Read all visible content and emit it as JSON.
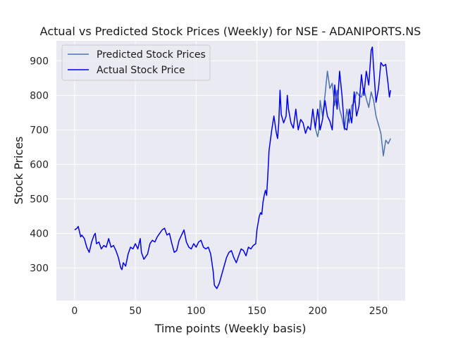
{
  "chart_data": {
    "type": "line",
    "title": "Actual vs Predicted Stock Prices (Weekly) for NSE - ADANIPORTS.NS",
    "xlabel": "Time points (Weekly basis)",
    "ylabel": "Stock Prices",
    "xlim": [
      -15,
      272
    ],
    "ylim": [
      205,
      958
    ],
    "xticks": [
      0,
      50,
      100,
      150,
      200,
      250
    ],
    "yticks": [
      300,
      400,
      500,
      600,
      700,
      800,
      900
    ],
    "grid": true,
    "legend_position": "top-left",
    "series": [
      {
        "name": "Predicted Stock Prices",
        "color": "#4c72b0",
        "x": [
          198,
          200,
          201,
          202,
          204,
          206,
          208,
          210,
          212,
          214,
          216,
          218,
          220,
          222,
          224,
          226,
          228,
          230,
          232,
          234,
          236,
          238,
          240,
          242,
          244,
          246,
          248,
          250,
          252,
          254,
          256,
          258,
          260
        ],
        "y": [
          705,
          680,
          700,
          785,
          740,
          800,
          870,
          820,
          835,
          770,
          815,
          760,
          735,
          700,
          760,
          720,
          770,
          780,
          810,
          800,
          795,
          820,
          790,
          765,
          810,
          785,
          740,
          715,
          690,
          625,
          670,
          660,
          675
        ]
      },
      {
        "name": "Actual Stock Price",
        "color": "#0000ee",
        "x": [
          0,
          2,
          3,
          5,
          6,
          8,
          10,
          12,
          14,
          16,
          17,
          18,
          20,
          22,
          24,
          26,
          28,
          30,
          32,
          34,
          36,
          38,
          39,
          40,
          42,
          44,
          46,
          48,
          50,
          52,
          54,
          55,
          57,
          59,
          60,
          62,
          64,
          66,
          68,
          70,
          72,
          74,
          76,
          78,
          80,
          82,
          84,
          86,
          88,
          90,
          92,
          94,
          96,
          98,
          100,
          102,
          104,
          106,
          108,
          110,
          112,
          114,
          115,
          117,
          119,
          121,
          123,
          125,
          127,
          129,
          131,
          133,
          135,
          137,
          139,
          141,
          143,
          145,
          147,
          149,
          150,
          152,
          153,
          154,
          155,
          156,
          157,
          158,
          159,
          160,
          162,
          164,
          166,
          167,
          168,
          169,
          170,
          172,
          174,
          175,
          176,
          178,
          180,
          182,
          184,
          186,
          188,
          190,
          192,
          194,
          196,
          198,
          200,
          202,
          204,
          206,
          208,
          210,
          212,
          214,
          216,
          218,
          220,
          222,
          224,
          226,
          228,
          230,
          232,
          234,
          236,
          238,
          240,
          242,
          244,
          245,
          246,
          248,
          250,
          252,
          254,
          256,
          258,
          259,
          260
        ],
        "y": [
          410,
          415,
          420,
          390,
          395,
          385,
          360,
          345,
          375,
          395,
          400,
          370,
          375,
          355,
          365,
          360,
          385,
          360,
          365,
          350,
          330,
          300,
          295,
          315,
          305,
          340,
          360,
          355,
          370,
          355,
          385,
          345,
          325,
          335,
          340,
          370,
          380,
          375,
          390,
          400,
          410,
          415,
          395,
          400,
          370,
          345,
          350,
          380,
          395,
          410,
          375,
          360,
          355,
          370,
          360,
          375,
          380,
          360,
          355,
          360,
          340,
          290,
          250,
          240,
          255,
          280,
          305,
          330,
          345,
          350,
          330,
          315,
          335,
          355,
          350,
          335,
          360,
          355,
          365,
          370,
          410,
          450,
          460,
          455,
          490,
          510,
          525,
          510,
          570,
          640,
          695,
          740,
          690,
          675,
          720,
          815,
          745,
          720,
          740,
          800,
          760,
          720,
          705,
          760,
          700,
          730,
          720,
          690,
          710,
          700,
          760,
          705,
          760,
          700,
          730,
          785,
          740,
          725,
          700,
          830,
          760,
          870,
          800,
          705,
          700,
          760,
          720,
          810,
          740,
          770,
          860,
          800,
          870,
          830,
          930,
          940,
          880,
          780,
          820,
          895,
          885,
          890,
          830,
          795,
          815
        ]
      }
    ]
  }
}
